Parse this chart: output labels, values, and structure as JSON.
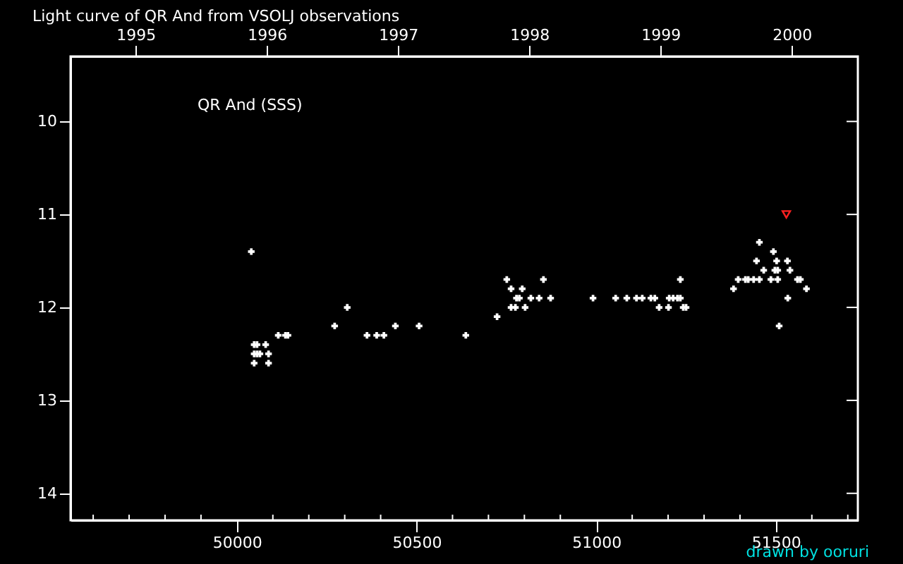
{
  "chart_data": {
    "type": "scatter",
    "title": "Light curve of QR And from   VSOLJ  observations",
    "annotations": [
      "QR And (SSS)",
      "drawn by ooruri"
    ],
    "xlim": [
      49537,
      51728
    ],
    "ylim": [
      14.29,
      9.3
    ],
    "xticks": [
      {
        "value": 49600,
        "label": null
      },
      {
        "value": 49700,
        "label": null
      },
      {
        "value": 49800,
        "label": null
      },
      {
        "value": 49900,
        "label": null
      },
      50000,
      {
        "value": 50100,
        "label": null
      },
      {
        "value": 50200,
        "label": null
      },
      {
        "value": 50300,
        "label": null
      },
      {
        "value": 50400,
        "label": null
      },
      50500,
      {
        "value": 50600,
        "label": null
      },
      {
        "value": 50700,
        "label": null
      },
      {
        "value": 50800,
        "label": null
      },
      {
        "value": 50900,
        "label": null
      },
      51000,
      {
        "value": 51100,
        "label": null
      },
      {
        "value": 51200,
        "label": null
      },
      {
        "value": 51300,
        "label": null
      },
      {
        "value": 51400,
        "label": null
      },
      51500,
      {
        "value": 51600,
        "label": null
      },
      {
        "value": 51700,
        "label": null
      }
    ],
    "yticks": [
      10,
      11,
      12,
      13,
      14
    ],
    "x2lim": [
      1994.504,
      2000.504
    ],
    "x2ticks": [
      1995,
      1996,
      1997,
      1998,
      1999,
      2000
    ],
    "grid": false,
    "tick_labels": "xy",
    "series": [
      {
        "color": "#ffffff",
        "marker": "cross",
        "x": [
          50040,
          50307,
          50272,
          50441,
          50507,
          50115,
          50135,
          50142,
          50362,
          50389,
          50409,
          50637,
          50048,
          50056,
          50080,
          50048,
          50056,
          50064,
          50088,
          50048,
          50088,
          50751,
          50853,
          51234,
          50763,
          50794,
          50778,
          50786,
          50818,
          50841,
          50873,
          50991,
          51054,
          51085,
          51112,
          51128,
          51152,
          51163,
          51203,
          51214,
          51226,
          51234,
          50763,
          50775,
          50802,
          51175,
          51201,
          51242,
          51250,
          50724,
          51454,
          51493,
          51446,
          51502,
          51532,
          51466,
          51497,
          51505,
          51539,
          51395,
          51415,
          51423,
          51438,
          51454,
          51486,
          51505,
          51560,
          51568,
          51382,
          51585,
          51533,
          51509
        ],
        "values": [
          11.4,
          12.0,
          12.2,
          12.2,
          12.2,
          12.3,
          12.3,
          12.3,
          12.3,
          12.3,
          12.3,
          12.3,
          12.4,
          12.4,
          12.4,
          12.5,
          12.5,
          12.5,
          12.5,
          12.6,
          12.6,
          11.7,
          11.7,
          11.7,
          11.8,
          11.8,
          11.9,
          11.9,
          11.9,
          11.9,
          11.9,
          11.9,
          11.9,
          11.9,
          11.9,
          11.9,
          11.9,
          11.9,
          11.9,
          11.9,
          11.9,
          11.9,
          12.0,
          12.0,
          12.0,
          12.0,
          12.0,
          12.0,
          12.0,
          12.1,
          11.3,
          11.4,
          11.5,
          11.5,
          11.5,
          11.6,
          11.6,
          11.6,
          11.6,
          11.7,
          11.7,
          11.7,
          11.7,
          11.7,
          11.7,
          11.7,
          11.7,
          11.7,
          11.8,
          11.8,
          11.9,
          12.2
        ]
      },
      {
        "color": "#ff2020",
        "marker": "triangle",
        "x": [
          51529
        ],
        "values": [
          11.0
        ]
      }
    ]
  }
}
